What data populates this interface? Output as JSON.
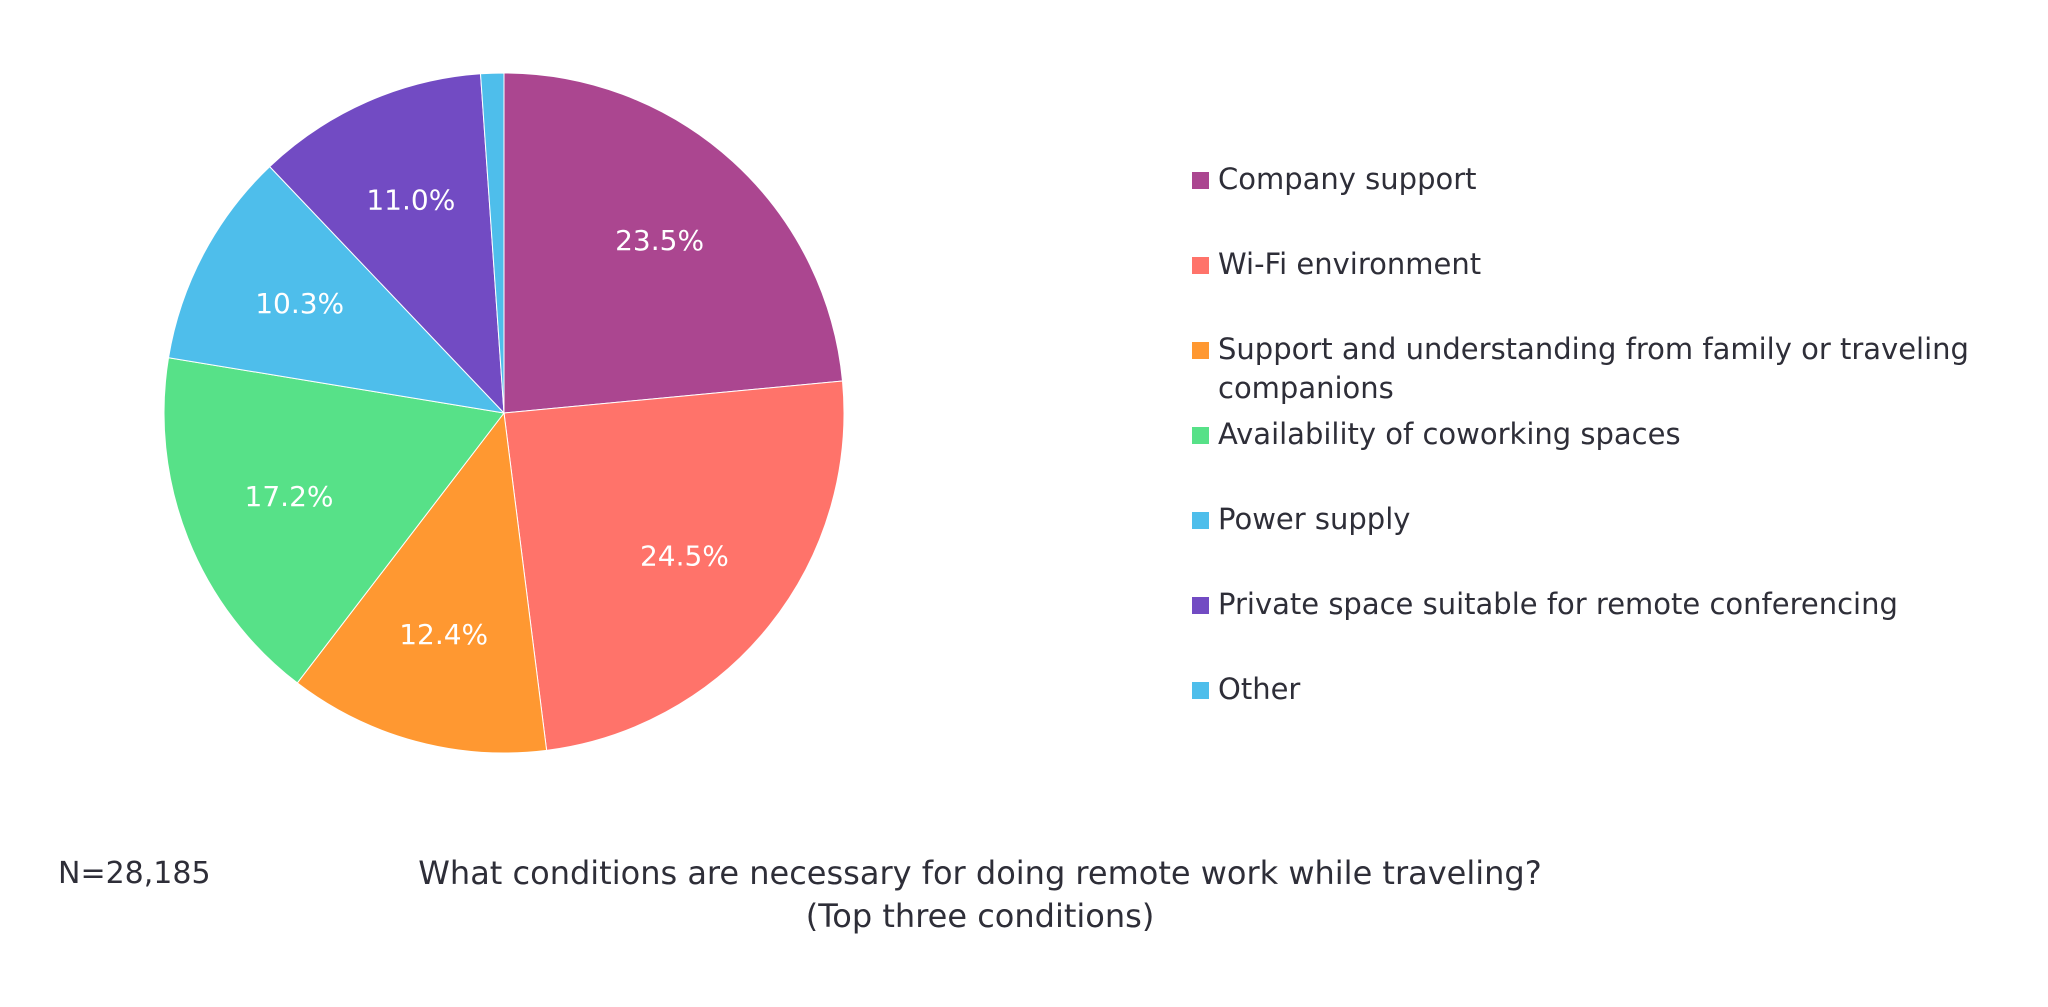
{
  "chart_data": {
    "type": "pie",
    "title": "What conditions are necessary for doing remote work while traveling?",
    "subtitle": "(Top three conditions)",
    "note": "N=28,185",
    "legend_position": "right",
    "slices": [
      {
        "label": "Company support",
        "value": 23.5,
        "display": "23.5%",
        "color": "#AB4690"
      },
      {
        "label": "Wi-Fi environment",
        "value": 24.5,
        "display": "24.5%",
        "color": "#FF736A"
      },
      {
        "label": "Support and understanding from family or traveling companions",
        "value": 12.4,
        "display": "12.4%",
        "color": "#FF9831"
      },
      {
        "label": "Availability of coworking spaces",
        "value": 17.2,
        "display": "17.2%",
        "color": "#57E188"
      },
      {
        "label": "Power supply",
        "value": 10.3,
        "display": "10.3%",
        "color": "#4EBEEB"
      },
      {
        "label": "Private space suitable for remote conferencing",
        "value": 11.0,
        "display": "11.0%",
        "color": "#724BC3"
      },
      {
        "label": "Other",
        "value": 1.1,
        "display": "",
        "color": "#4EBEEB"
      }
    ]
  }
}
